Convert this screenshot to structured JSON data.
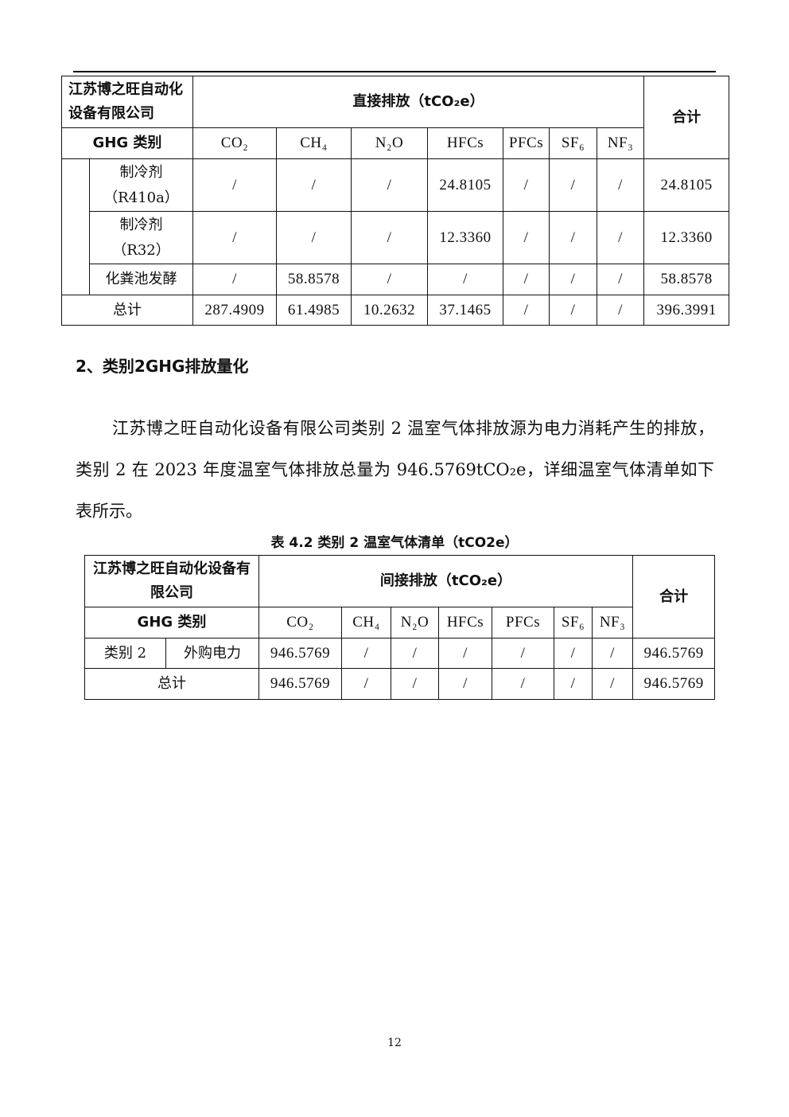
{
  "table1": {
    "company": "江苏博之旺自动化设备有限公司",
    "group_header": "直接排放（tCO₂e）",
    "total_header": "合计",
    "category_header": "GHG 类别",
    "gases": [
      "CO₂",
      "CH₄",
      "N₂O",
      "HFCs",
      "PFCs",
      "SF₆",
      "NF₃"
    ],
    "rows": [
      {
        "label": "制冷剂（R410a）",
        "values": [
          "/",
          "/",
          "/",
          "24.8105",
          "/",
          "/",
          "/"
        ],
        "total": "24.8105"
      },
      {
        "label": "制冷剂（R32）",
        "values": [
          "/",
          "/",
          "/",
          "12.3360",
          "/",
          "/",
          "/"
        ],
        "total": "12.3360"
      },
      {
        "label": "化粪池发酵",
        "values": [
          "/",
          "58.8578",
          "/",
          "/",
          "/",
          "/",
          "/"
        ],
        "total": "58.8578"
      }
    ],
    "sum_row": {
      "label": "总计",
      "values": [
        "287.4909",
        "61.4985",
        "10.2632",
        "37.1465",
        "/",
        "/",
        "/"
      ],
      "total": "396.3991"
    }
  },
  "section_heading": "2、类别2GHG排放量化",
  "paragraph": "江苏博之旺自动化设备有限公司类别 2 温室气体排放源为电力消耗产生的排放，类别 2 在 2023 年度温室气体排放总量为 946.5769tCO₂e，详细温室气体清单如下表所示。",
  "table2": {
    "caption": "表 4.2 类别 2 温室气体清单（tCO2e）",
    "company": "江苏博之旺自动化设备有限公司",
    "group_header": "间接排放（tCO₂e）",
    "total_header": "合计",
    "category_header": "GHG 类别",
    "gases": [
      "CO₂",
      "CH₄",
      "N₂O",
      "HFCs",
      "PFCs",
      "SF₆",
      "NF₃"
    ],
    "row": {
      "category": "类别 2",
      "label": "外购电力",
      "values": [
        "946.5769",
        "/",
        "/",
        "/",
        "/",
        "/",
        "/"
      ],
      "total": "946.5769"
    },
    "sum_row": {
      "label": "总计",
      "values": [
        "946.5769",
        "/",
        "/",
        "/",
        "/",
        "/",
        "/"
      ],
      "total": "946.5769"
    }
  },
  "page_number": "12"
}
